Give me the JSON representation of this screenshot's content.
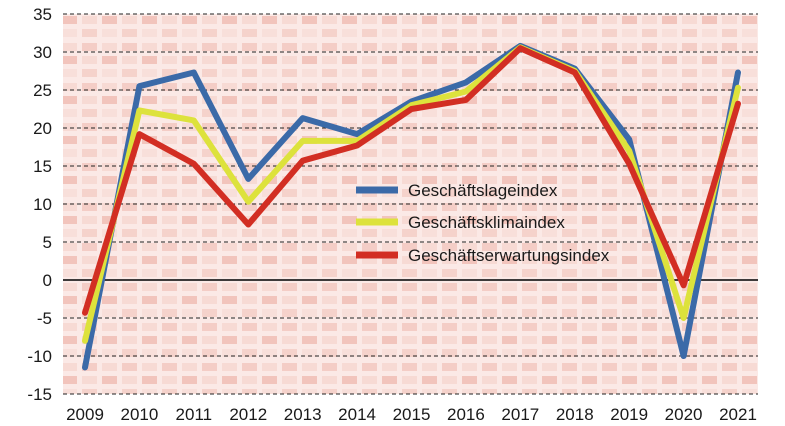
{
  "chart_data": {
    "type": "line",
    "x": [
      "2009",
      "2010",
      "2011",
      "2012",
      "2013",
      "2014",
      "2015",
      "2016",
      "2017",
      "2018",
      "2019",
      "2020",
      "2021"
    ],
    "ylim": [
      -15,
      35
    ],
    "yticks": [
      35,
      30,
      25,
      20,
      15,
      10,
      5,
      0,
      -5,
      -10,
      -15
    ],
    "grid": "horizontal dashed",
    "legend_position": "center-right",
    "series": [
      {
        "name": "Geschäftslageindex",
        "color": "#3b6aa8",
        "values": [
          -11.5,
          25.5,
          27.3,
          13.3,
          21.3,
          19.2,
          23.5,
          26.0,
          30.8,
          27.8,
          18.5,
          -10.0,
          27.3
        ]
      },
      {
        "name": "Geschäftsklimaindex",
        "color": "#dde23c",
        "values": [
          -8.0,
          22.3,
          21.0,
          10.3,
          18.3,
          18.3,
          23.0,
          24.8,
          30.6,
          27.5,
          17.0,
          -5.0,
          25.3
        ]
      },
      {
        "name": "Geschäftserwartungsindex",
        "color": "#d22e23",
        "values": [
          -4.3,
          19.2,
          15.3,
          7.3,
          15.7,
          17.7,
          22.5,
          23.7,
          30.5,
          27.3,
          15.3,
          -0.7,
          23.2
        ]
      }
    ]
  }
}
